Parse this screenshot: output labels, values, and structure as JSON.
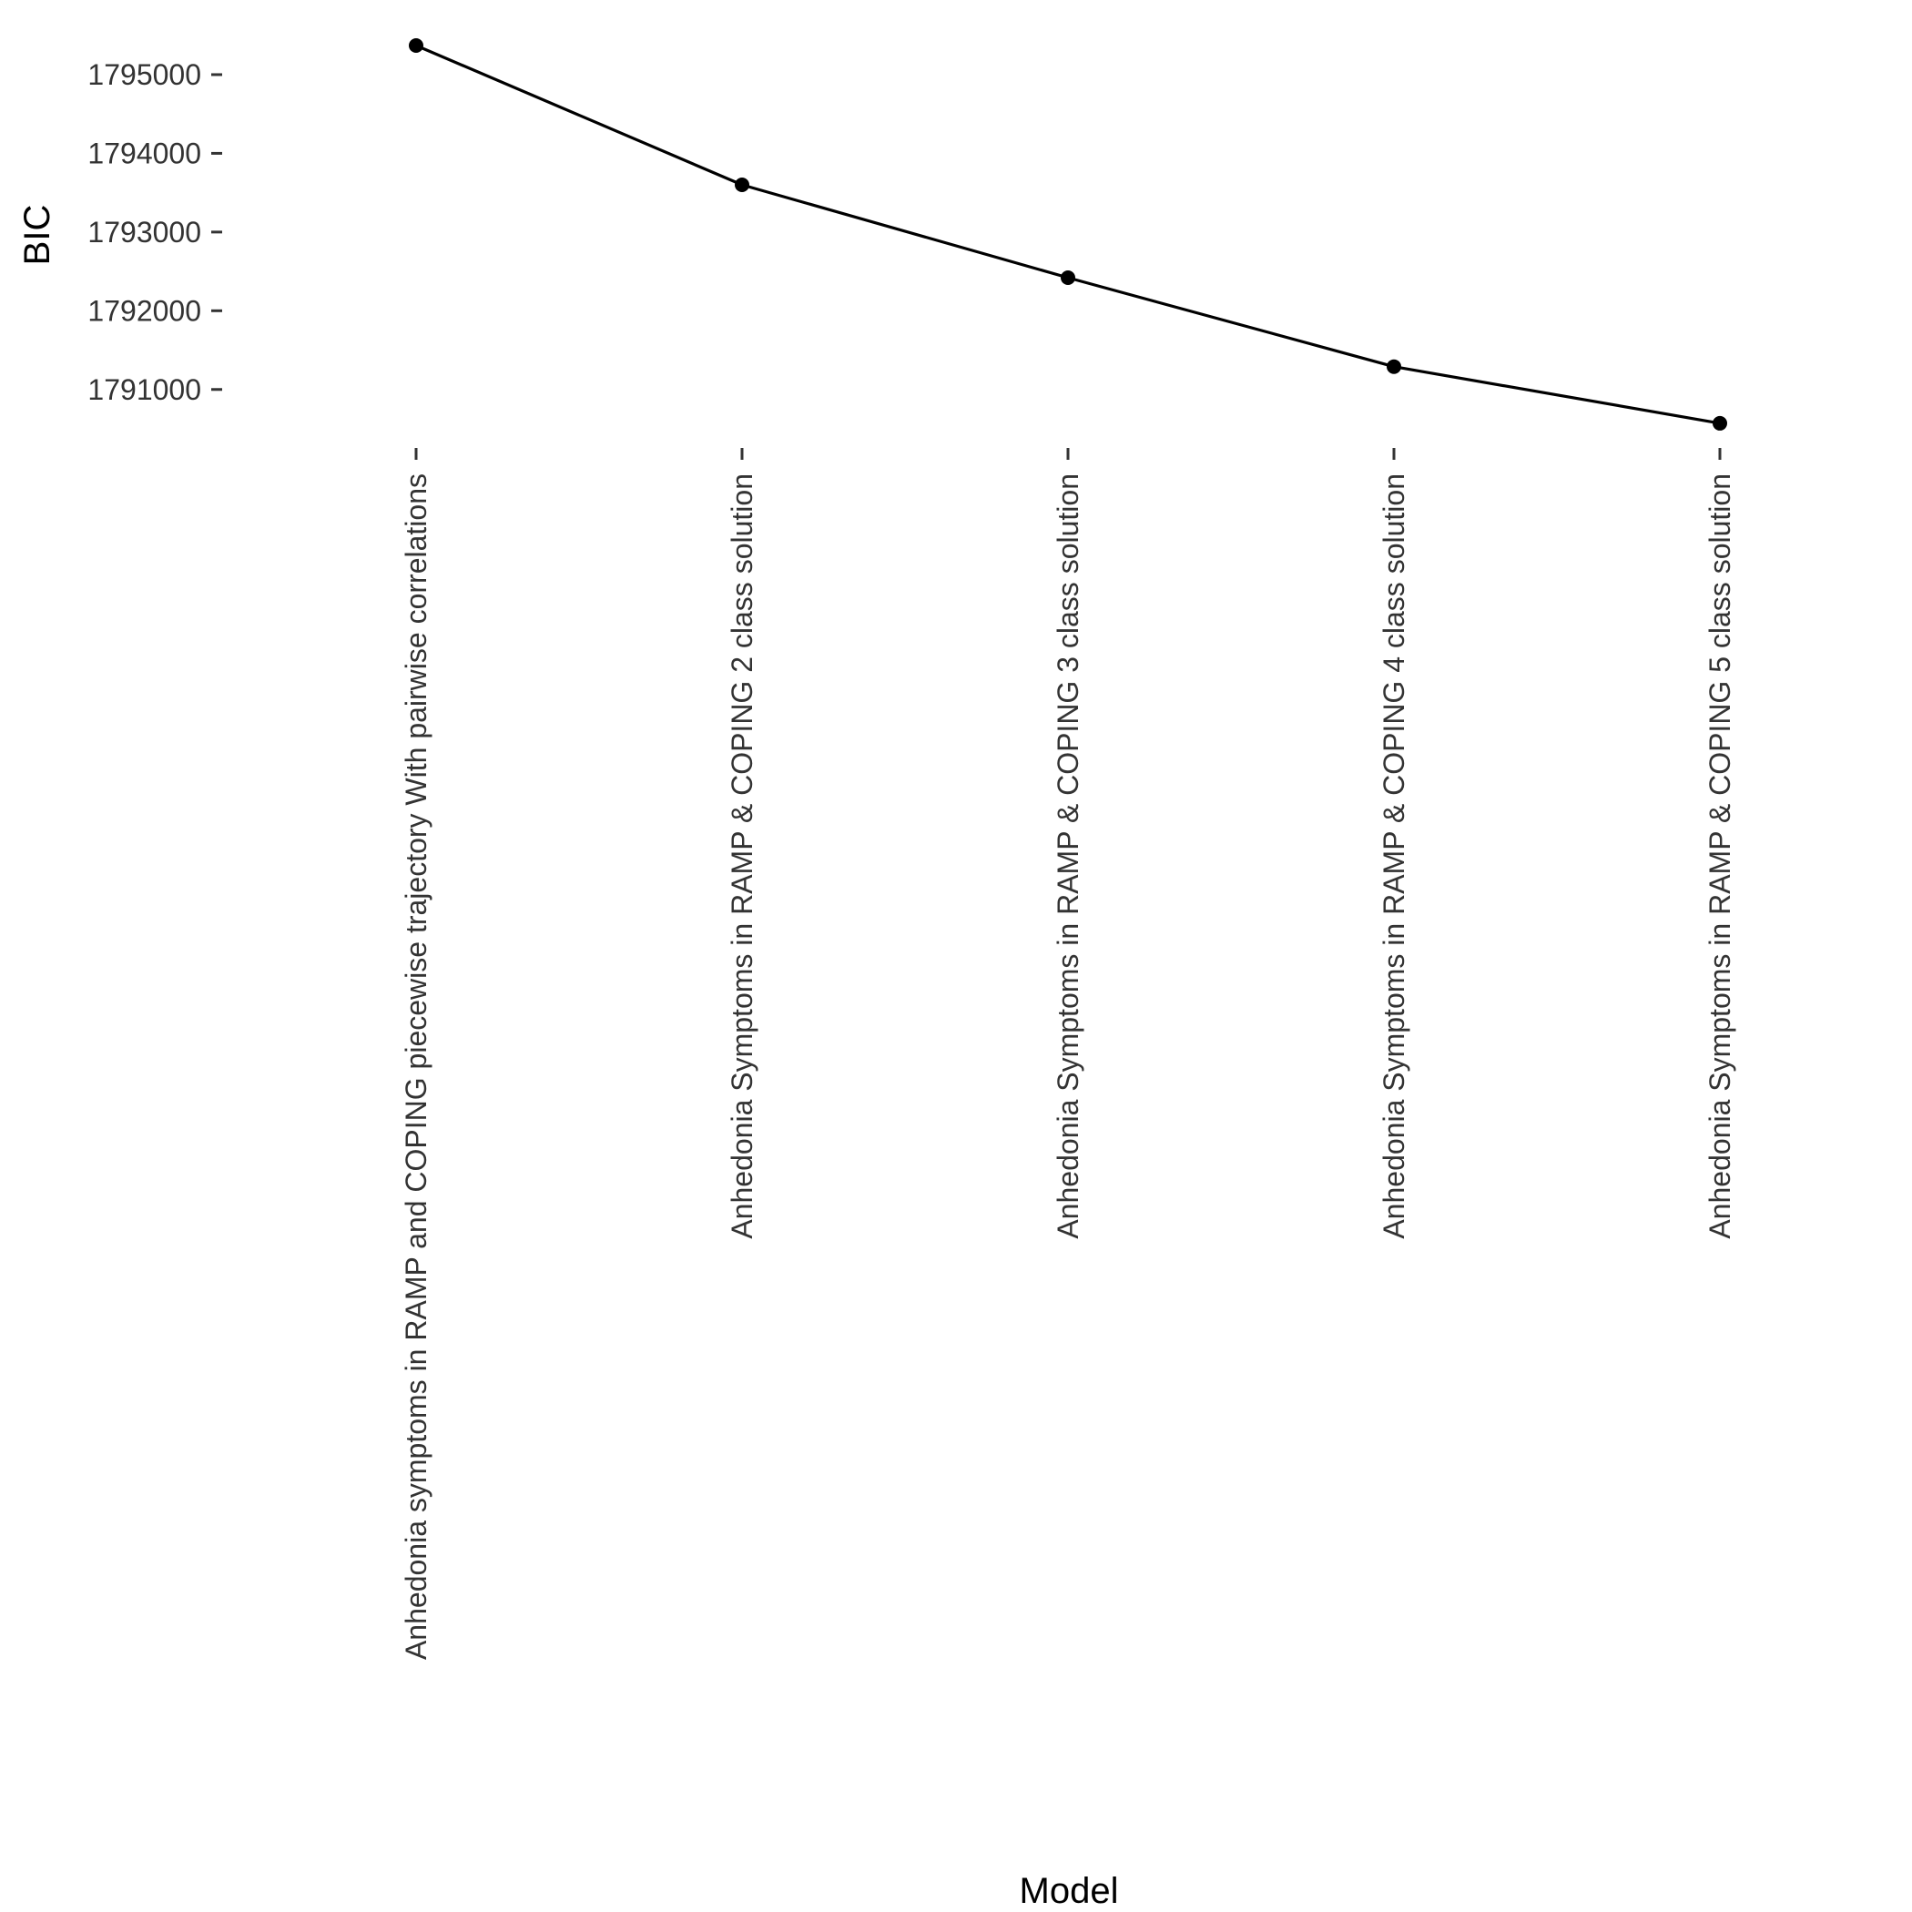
{
  "chart_data": {
    "type": "line",
    "xlabel": "Model",
    "ylabel": "BIC",
    "categories": [
      "Anhedonia symptoms in RAMP and COPING piecewise trajectory With pairwise correlations",
      "Anhedonia Symptoms in RAMP & COPING 2 class solution",
      "Anhedonia Symptoms in RAMP & COPING 3 class solution",
      "Anhedonia Symptoms in RAMP & COPING 4 class solution",
      "Anhedonia Symptoms in RAMP & COPING 5 class solution"
    ],
    "values": [
      1795370,
      1793600,
      1792420,
      1791290,
      1790570
    ],
    "yticks": [
      1791000,
      1792000,
      1793000,
      1794000,
      1795000
    ],
    "yticklabels": [
      "1791000",
      "1792000",
      "1793000",
      "1794000",
      "1795000"
    ],
    "ylim": [
      1790280,
      1795740
    ],
    "grid": false,
    "legend": "none",
    "line_color": "#000000",
    "point_color": "#000000"
  }
}
